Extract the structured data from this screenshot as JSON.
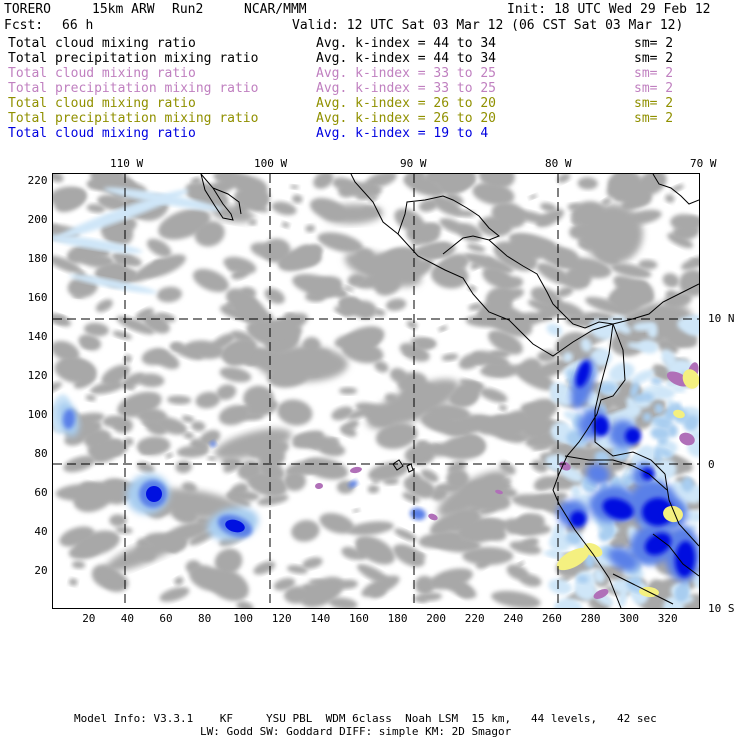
{
  "header": {
    "model": "TORERO",
    "resolution": "15km ARW",
    "run": "Run2",
    "org": "NCAR/MMM",
    "init": "Init: 18 UTC Wed 29 Feb 12",
    "fcst_label": "Fcst:",
    "fcst_value": "66 h",
    "valid": "Valid: 12 UTC Sat 03 Mar 12 (06 CST Sat 03 Mar 12)"
  },
  "legend": [
    {
      "field": "Total cloud mixing ratio",
      "kindex": "Avg. k-index = 44 to 34",
      "sm": "sm= 2",
      "color": "#000000"
    },
    {
      "field": "Total precipitation mixing ratio",
      "kindex": "Avg. k-index = 44 to 34",
      "sm": "sm= 2",
      "color": "#000000"
    },
    {
      "field": "Total cloud mixing ratio",
      "kindex": "Avg. k-index = 33 to 25",
      "sm": "sm= 2",
      "color": "#c080c0"
    },
    {
      "field": "Total precipitation mixing ratio",
      "kindex": "Avg. k-index = 33 to 25",
      "sm": "sm= 2",
      "color": "#c080c0"
    },
    {
      "field": "Total cloud mixing ratio",
      "kindex": "Avg. k-index = 26 to 20",
      "sm": "sm= 2",
      "color": "#909000"
    },
    {
      "field": "Total precipitation mixing ratio",
      "kindex": "Avg. k-index = 26 to 20",
      "sm": "sm= 2",
      "color": "#909000"
    },
    {
      "field": "Total cloud mixing ratio",
      "kindex": "Avg. k-index = 19 to 4",
      "sm": "",
      "color": "#0000e0"
    }
  ],
  "lon_labels": [
    "110 W",
    "100 W",
    "90 W",
    "80 W",
    "70 W"
  ],
  "lat_labels": [
    "10 N",
    "0",
    "10 S"
  ],
  "x_ticks": [
    "20",
    "40",
    "60",
    "80",
    "100",
    "120",
    "140",
    "160",
    "180",
    "200",
    "220",
    "240",
    "260",
    "280",
    "300",
    "320"
  ],
  "y_ticks": [
    "220",
    "200",
    "180",
    "160",
    "140",
    "120",
    "100",
    "80",
    "60",
    "40",
    "20"
  ],
  "footer": {
    "line1": "Model Info: V3.3.1    KF     YSU PBL  WDM 6class  Noah LSM  15 km,   44 levels,   42 sec",
    "line2": "LW: Godd SW: Goddard DIFF: simple KM: 2D Smagor"
  },
  "colors": {
    "gray_cloud": "#a8a8a8",
    "light_blue": "#cfe6f8",
    "pale_blue": "#a8cdf0",
    "mid_blue": "#5a80e8",
    "deep_blue": "#0010e0",
    "purple": "#b070b8",
    "yellow": "#f4f080"
  }
}
